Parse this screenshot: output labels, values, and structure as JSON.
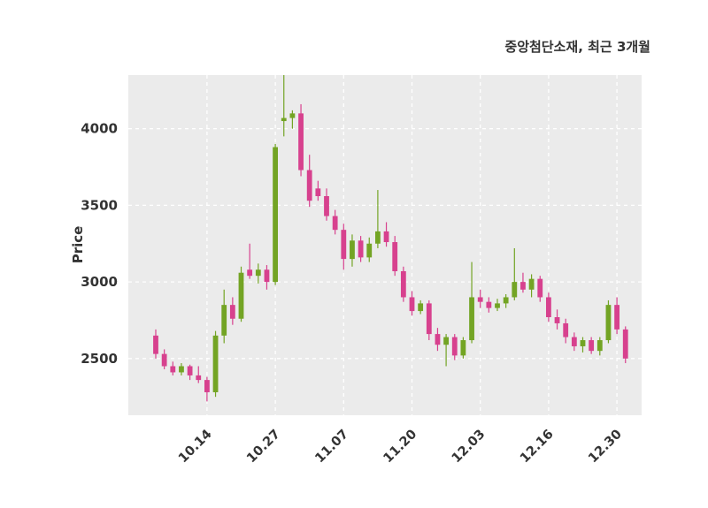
{
  "header": {
    "title": "중앙첨단소재, 최근 3개월"
  },
  "chart_data": {
    "type": "candlestick",
    "title": "중앙첨단소재, 최근 3개월",
    "ylabel": "Price",
    "yticks": [
      2500,
      3000,
      3500,
      4000
    ],
    "ylim": [
      2130,
      4350
    ],
    "grid": "white dashed lines on light gray plot background",
    "legend": "none",
    "colors": {
      "up": "#73a424",
      "down": "#d7418e",
      "plot_bg": "#ebebeb",
      "grid": "#ffffff",
      "text": "#333333"
    },
    "xticks": [
      {
        "index": 6,
        "label": "10.14"
      },
      {
        "index": 14,
        "label": "10.27"
      },
      {
        "index": 22,
        "label": "11.07"
      },
      {
        "index": 30,
        "label": "11.20"
      },
      {
        "index": 38,
        "label": "12.03"
      },
      {
        "index": 46,
        "label": "12.16"
      },
      {
        "index": 54,
        "label": "12.30"
      }
    ],
    "candles": [
      [
        2650,
        2690,
        2500,
        2530
      ],
      [
        2530,
        2560,
        2430,
        2450
      ],
      [
        2450,
        2480,
        2390,
        2410
      ],
      [
        2410,
        2470,
        2390,
        2450
      ],
      [
        2450,
        2460,
        2360,
        2390
      ],
      [
        2390,
        2450,
        2340,
        2360
      ],
      [
        2360,
        2380,
        2220,
        2280
      ],
      [
        2280,
        2680,
        2250,
        2650
      ],
      [
        2650,
        2950,
        2600,
        2850
      ],
      [
        2850,
        2900,
        2720,
        2760
      ],
      [
        2760,
        3100,
        2740,
        3060
      ],
      [
        3080,
        3250,
        3020,
        3040
      ],
      [
        3040,
        3120,
        2990,
        3080
      ],
      [
        3080,
        3110,
        2950,
        3000
      ],
      [
        3000,
        3900,
        2980,
        3880
      ],
      [
        4050,
        4350,
        3950,
        4070
      ],
      [
        4070,
        4120,
        4000,
        4100
      ],
      [
        4100,
        4160,
        3690,
        3730
      ],
      [
        3730,
        3830,
        3490,
        3530
      ],
      [
        3610,
        3660,
        3530,
        3560
      ],
      [
        3560,
        3610,
        3400,
        3430
      ],
      [
        3430,
        3470,
        3310,
        3340
      ],
      [
        3340,
        3380,
        3080,
        3150
      ],
      [
        3150,
        3310,
        3100,
        3270
      ],
      [
        3270,
        3300,
        3130,
        3160
      ],
      [
        3160,
        3290,
        3130,
        3250
      ],
      [
        3250,
        3600,
        3220,
        3330
      ],
      [
        3330,
        3390,
        3230,
        3260
      ],
      [
        3260,
        3300,
        3040,
        3070
      ],
      [
        3070,
        3100,
        2870,
        2900
      ],
      [
        2900,
        2940,
        2780,
        2810
      ],
      [
        2810,
        2880,
        2790,
        2860
      ],
      [
        2860,
        2880,
        2620,
        2660
      ],
      [
        2660,
        2700,
        2550,
        2590
      ],
      [
        2590,
        2660,
        2450,
        2640
      ],
      [
        2640,
        2660,
        2490,
        2520
      ],
      [
        2520,
        2640,
        2500,
        2620
      ],
      [
        2620,
        3130,
        2600,
        2900
      ],
      [
        2900,
        2950,
        2830,
        2870
      ],
      [
        2870,
        2900,
        2800,
        2830
      ],
      [
        2830,
        2890,
        2810,
        2860
      ],
      [
        2860,
        2920,
        2830,
        2900
      ],
      [
        2900,
        3220,
        2880,
        3000
      ],
      [
        3000,
        3060,
        2930,
        2950
      ],
      [
        2950,
        3050,
        2900,
        3020
      ],
      [
        3020,
        3040,
        2870,
        2900
      ],
      [
        2900,
        2930,
        2740,
        2770
      ],
      [
        2770,
        2820,
        2690,
        2730
      ],
      [
        2730,
        2760,
        2600,
        2640
      ],
      [
        2640,
        2670,
        2550,
        2580
      ],
      [
        2580,
        2640,
        2540,
        2620
      ],
      [
        2620,
        2640,
        2530,
        2550
      ],
      [
        2550,
        2640,
        2520,
        2620
      ],
      [
        2620,
        2880,
        2600,
        2850
      ],
      [
        2850,
        2900,
        2660,
        2690
      ],
      [
        2690,
        2710,
        2470,
        2500
      ]
    ]
  }
}
